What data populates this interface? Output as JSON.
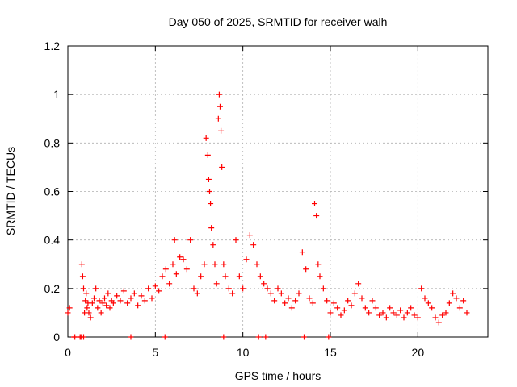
{
  "chart_data": {
    "type": "scatter",
    "title": "Day 050 of 2025, SRMTID for receiver walh",
    "xlabel": "GPS time / hours",
    "ylabel": "SRMTID / TECUs",
    "xlim": [
      0,
      24
    ],
    "ylim": [
      0,
      1.2
    ],
    "x_ticks": [
      0,
      5,
      10,
      15,
      20
    ],
    "x_tick_labels": [
      "0",
      "5",
      "10",
      "15",
      "20"
    ],
    "y_ticks": [
      0,
      0.2,
      0.4,
      0.6,
      0.8,
      1.0,
      1.2
    ],
    "y_tick_labels": [
      "0",
      "0.2",
      "0.4",
      "0.6",
      "0.8",
      "1",
      "1.2"
    ],
    "grid": true,
    "marker": "plus",
    "series": [
      {
        "name": "SRMTID",
        "color": "#ff0000",
        "x": [
          0.0,
          0.1,
          0.4,
          0.7,
          0.8,
          0.85,
          0.9,
          0.95,
          1.0,
          1.05,
          1.1,
          1.15,
          1.2,
          1.3,
          1.4,
          1.5,
          1.6,
          1.7,
          1.8,
          1.9,
          2.0,
          2.1,
          2.2,
          2.3,
          2.4,
          2.5,
          2.6,
          2.8,
          3.0,
          3.2,
          3.4,
          3.6,
          3.8,
          4.0,
          4.2,
          4.4,
          4.6,
          4.8,
          5.0,
          5.2,
          5.4,
          5.6,
          5.8,
          6.0,
          6.1,
          6.2,
          6.4,
          6.6,
          6.8,
          7.0,
          7.2,
          7.4,
          7.6,
          7.8,
          7.9,
          8.0,
          8.05,
          8.1,
          8.15,
          8.2,
          8.3,
          8.4,
          8.5,
          8.6,
          8.65,
          8.7,
          8.75,
          8.8,
          8.9,
          9.0,
          9.2,
          9.4,
          9.6,
          9.8,
          10.0,
          10.2,
          10.4,
          10.6,
          10.8,
          11.0,
          11.2,
          11.4,
          11.6,
          11.8,
          12.0,
          12.2,
          12.4,
          12.6,
          12.8,
          13.0,
          13.2,
          13.4,
          13.6,
          13.8,
          14.0,
          14.1,
          14.2,
          14.3,
          14.4,
          14.6,
          14.8,
          15.0,
          15.2,
          15.4,
          15.6,
          15.8,
          16.0,
          16.2,
          16.4,
          16.6,
          16.8,
          17.0,
          17.2,
          17.4,
          17.6,
          17.8,
          18.0,
          18.2,
          18.4,
          18.6,
          18.8,
          19.0,
          19.2,
          19.4,
          19.6,
          19.8,
          20.0,
          20.2,
          20.4,
          20.6,
          20.8,
          21.0,
          21.2,
          21.4,
          21.6,
          21.8,
          22.0,
          22.2,
          22.4,
          22.6,
          22.8,
          0.35,
          0.75,
          0.9,
          3.6,
          5.55,
          8.9,
          10.9,
          11.3,
          13.5,
          14.9
        ],
        "y": [
          0.1,
          0.12,
          0.0,
          0.0,
          0.3,
          0.25,
          0.2,
          0.1,
          0.15,
          0.18,
          0.12,
          0.14,
          0.1,
          0.08,
          0.14,
          0.16,
          0.2,
          0.12,
          0.15,
          0.1,
          0.14,
          0.16,
          0.13,
          0.18,
          0.12,
          0.15,
          0.14,
          0.17,
          0.15,
          0.19,
          0.14,
          0.16,
          0.18,
          0.13,
          0.17,
          0.15,
          0.2,
          0.16,
          0.21,
          0.19,
          0.25,
          0.28,
          0.22,
          0.3,
          0.4,
          0.26,
          0.33,
          0.32,
          0.28,
          0.4,
          0.2,
          0.18,
          0.25,
          0.3,
          0.82,
          0.75,
          0.65,
          0.6,
          0.55,
          0.45,
          0.38,
          0.3,
          0.22,
          0.9,
          1.0,
          0.95,
          0.85,
          0.7,
          0.3,
          0.25,
          0.2,
          0.18,
          0.4,
          0.25,
          0.2,
          0.32,
          0.42,
          0.38,
          0.3,
          0.25,
          0.22,
          0.2,
          0.18,
          0.15,
          0.2,
          0.18,
          0.14,
          0.16,
          0.12,
          0.15,
          0.18,
          0.35,
          0.28,
          0.16,
          0.14,
          0.55,
          0.5,
          0.3,
          0.25,
          0.2,
          0.15,
          0.1,
          0.14,
          0.12,
          0.09,
          0.11,
          0.15,
          0.13,
          0.18,
          0.22,
          0.16,
          0.12,
          0.1,
          0.15,
          0.12,
          0.09,
          0.1,
          0.08,
          0.12,
          0.1,
          0.09,
          0.11,
          0.08,
          0.1,
          0.12,
          0.09,
          0.08,
          0.2,
          0.16,
          0.14,
          0.12,
          0.08,
          0.06,
          0.09,
          0.1,
          0.14,
          0.18,
          0.16,
          0.12,
          0.15,
          0.1,
          0.0,
          0.0,
          0.0,
          0.0,
          0.0,
          0.0,
          0.0,
          0.0,
          0.0,
          0.0
        ]
      }
    ]
  }
}
